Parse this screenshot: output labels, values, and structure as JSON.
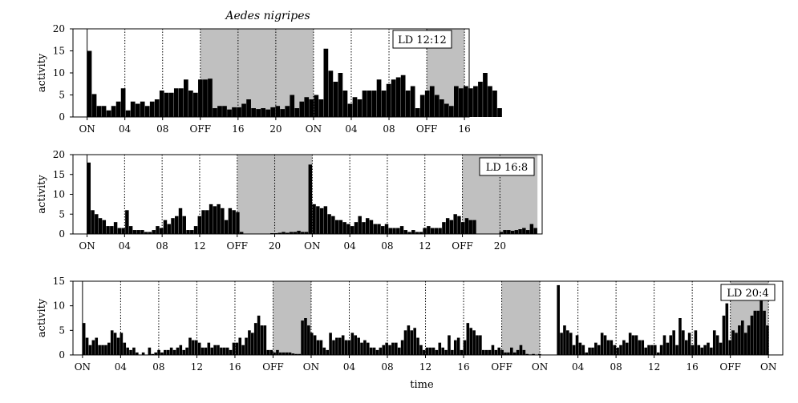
{
  "figure": {
    "title": "Aedes nigripes",
    "shared_xlabel": "time"
  },
  "chart_data": [
    {
      "type": "bar",
      "ld_label": "LD 12:12",
      "ylabel": "activity",
      "ylim": [
        0,
        20
      ],
      "yticks": [
        0,
        5,
        10,
        15,
        20
      ],
      "xticks": [
        "ON",
        "04",
        "08",
        "OFF",
        "16",
        "20",
        "ON",
        "04",
        "08",
        "OFF",
        "16"
      ],
      "dark_periods": [
        [
          12,
          24
        ],
        [
          36,
          40
        ]
      ],
      "x_range": [
        -1.5,
        40.5
      ],
      "grid": "vertical dotted",
      "values": [
        15,
        5.2,
        2.5,
        2.5,
        1.5,
        2.5,
        3.5,
        6.5,
        1.5,
        3.5,
        3,
        3.5,
        2.5,
        3.5,
        4,
        6,
        5.5,
        5.5,
        6.5,
        6.5,
        8.5,
        6,
        5.5,
        8.5,
        8.5,
        8.7,
        2,
        2.5,
        2.5,
        1.7,
        2.2,
        2.2,
        3,
        4,
        2,
        1.8,
        2,
        1.7,
        2.2,
        2.5,
        1.8,
        2.5,
        5,
        2,
        3.5,
        4.5,
        4,
        5,
        4,
        15.5,
        10.5,
        8,
        10,
        6,
        3,
        4.5,
        4,
        6,
        6,
        6,
        8.5,
        6,
        7.5,
        8.5,
        9,
        9.5,
        6,
        7,
        2,
        5,
        6,
        7,
        5,
        4,
        3,
        2.5,
        7,
        6.5,
        7,
        6.5,
        7,
        8,
        10,
        7,
        6,
        2
      ]
    },
    {
      "type": "bar",
      "ld_label": "LD 16:8",
      "ylabel": "activity",
      "ylim": [
        0,
        20
      ],
      "yticks": [
        0,
        5,
        10,
        15,
        20
      ],
      "xticks": [
        "ON",
        "04",
        "08",
        "12",
        "OFF",
        "20",
        "ON",
        "04",
        "08",
        "12",
        "OFF",
        "20"
      ],
      "dark_periods": [
        [
          16,
          24
        ],
        [
          40,
          48
        ]
      ],
      "x_range": [
        -1.5,
        48.5
      ],
      "grid": "vertical dotted",
      "values": [
        18,
        6,
        5,
        4,
        3.5,
        2,
        2,
        3,
        1.5,
        1.5,
        6,
        2,
        1,
        1,
        1,
        0.5,
        0.5,
        1,
        2,
        1.5,
        3.5,
        2.5,
        4,
        4.5,
        6.5,
        4.5,
        1,
        1,
        2,
        4.5,
        6,
        6,
        7.5,
        7,
        7.5,
        6.5,
        3.5,
        6.5,
        6,
        5.5,
        0.5,
        0,
        0,
        0,
        0,
        0,
        0,
        0,
        0.2,
        0.2,
        0.3,
        0.5,
        0.3,
        0.5,
        0.5,
        0.8,
        0.5,
        0.5,
        17.5,
        7.5,
        7,
        6.5,
        7,
        5,
        4.5,
        3.5,
        3.5,
        3,
        2.5,
        2,
        3,
        4.5,
        3,
        4,
        3.5,
        2.5,
        2.5,
        2,
        2.5,
        1.5,
        1.5,
        1.5,
        2,
        1,
        0.5,
        1,
        0.5,
        0.5,
        1.5,
        2,
        1.5,
        1.5,
        1.5,
        3,
        4,
        3.5,
        5,
        4.5,
        3,
        4,
        3.5,
        3.5,
        0,
        0,
        0,
        0,
        0,
        0,
        0.5,
        1,
        1,
        0.8,
        1,
        1.2,
        1.5,
        1,
        2.5,
        1.5
      ]
    },
    {
      "type": "bar",
      "ld_label": "LD 20:4",
      "ylabel": "activity",
      "ylim": [
        0,
        15
      ],
      "yticks": [
        0,
        5,
        10,
        15
      ],
      "xticks": [
        "ON",
        "04",
        "08",
        "12",
        "16",
        "OFF",
        "ON",
        "04",
        "08",
        "12",
        "16",
        "OFF",
        "ON",
        "04",
        "08",
        "12",
        "16",
        "OFF",
        "ON"
      ],
      "dark_periods": [
        [
          20,
          24
        ],
        [
          44,
          48
        ],
        [
          68,
          72
        ]
      ],
      "x_range": [
        -1,
        73.5
      ],
      "grid": "vertical dotted",
      "values": [
        6.5,
        3.5,
        2,
        3,
        3.5,
        2,
        2,
        2,
        2.5,
        5,
        4.5,
        3.5,
        4.5,
        2.5,
        1.5,
        1,
        1.5,
        0.5,
        0,
        0.5,
        0,
        1.5,
        0.2,
        0.5,
        1,
        0.5,
        1,
        1,
        1.5,
        1,
        1.5,
        2,
        1,
        1.5,
        3.5,
        3,
        3,
        2.5,
        1.5,
        1.5,
        2.5,
        1.5,
        2,
        2,
        1.5,
        1.5,
        1.5,
        1,
        2.5,
        2.5,
        3.5,
        2,
        3.5,
        5,
        4.5,
        6.5,
        8,
        6,
        6,
        1,
        1,
        0.5,
        1,
        0.5,
        0.5,
        0.5,
        0.5,
        0.3,
        0.2,
        0.2,
        7,
        7.5,
        6,
        4.5,
        4,
        3,
        3,
        1.5,
        1,
        4.5,
        3,
        3.5,
        3.5,
        4,
        3,
        3,
        4.5,
        4,
        3.5,
        2.5,
        3,
        2.5,
        1.5,
        1.5,
        1,
        1.5,
        2,
        2.5,
        2,
        2.5,
        2.5,
        1.5,
        3,
        5,
        6,
        5,
        5.5,
        3.5,
        2,
        1,
        1.5,
        1.5,
        1.5,
        1,
        2.5,
        1.5,
        1,
        4,
        1,
        3,
        3.5,
        1,
        3,
        6.5,
        5.5,
        5,
        4,
        4,
        1,
        1,
        1,
        2,
        1,
        1.5,
        1,
        0.5,
        0.5,
        1.5,
        0.5,
        1,
        2,
        1,
        0.2,
        0.1,
        0.2,
        0,
        0.2,
        0,
        0,
        0,
        0,
        0,
        14.2,
        4.5,
        6,
        5,
        4.5,
        2,
        4,
        2.5,
        2,
        0.5,
        1.5,
        1.5,
        2.5,
        2,
        4.5,
        4,
        3,
        3,
        2,
        1.5,
        2,
        3,
        2.5,
        4.5,
        4,
        4,
        3,
        3,
        1.5,
        2,
        2,
        2,
        0.5,
        2,
        4,
        2.5,
        4,
        5,
        2,
        7.5,
        5,
        3,
        4.5,
        2,
        5,
        2,
        1.5,
        2,
        2.5,
        1.5,
        5,
        4,
        2.5,
        8,
        10.5,
        3,
        5,
        4.5,
        6,
        7,
        4.5,
        6,
        8,
        9,
        9,
        11.5,
        9,
        6,
        0,
        0,
        0,
        0,
        0,
        0,
        0,
        0,
        0,
        0,
        0,
        0
      ]
    }
  ]
}
